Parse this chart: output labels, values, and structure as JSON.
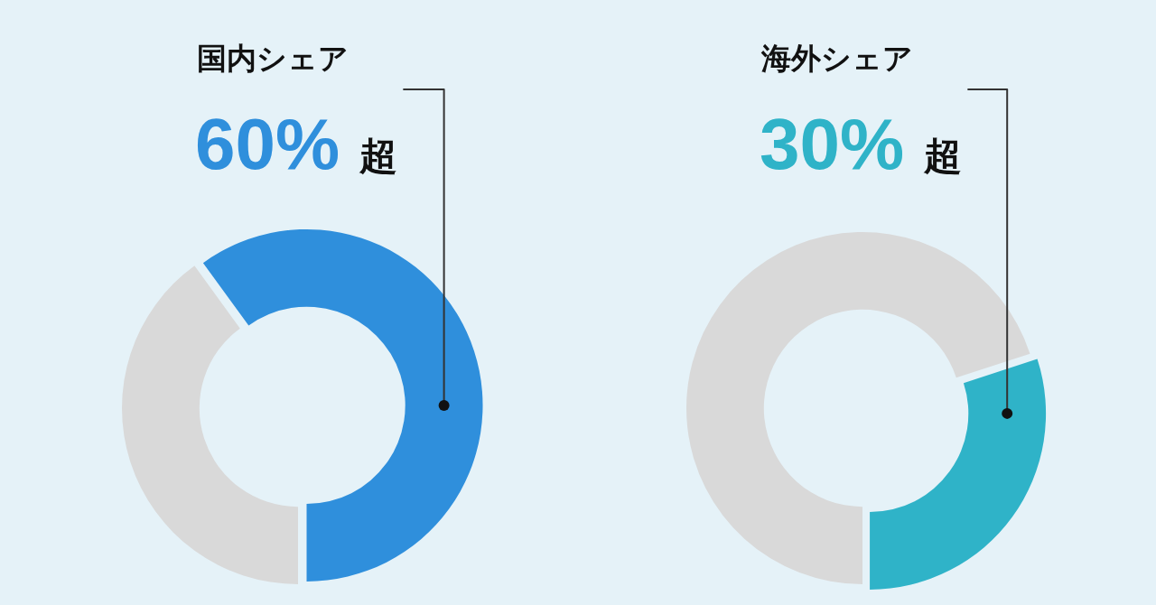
{
  "chart_data": [
    {
      "type": "donut",
      "title": "国内シェア",
      "categories": [
        null,
        null
      ],
      "values": [
        60,
        40
      ],
      "colors": [
        "#2f8fdc",
        "#d9d9d9"
      ],
      "value_labels": [
        "60% 超",
        null
      ]
    },
    {
      "type": "donut",
      "title": "海外シェア",
      "categories": [
        null,
        null
      ],
      "values": [
        30,
        70
      ],
      "colors": [
        "#2fb3c8",
        "#d9d9d9"
      ],
      "value_labels": [
        "30% 超",
        null
      ]
    }
  ]
}
